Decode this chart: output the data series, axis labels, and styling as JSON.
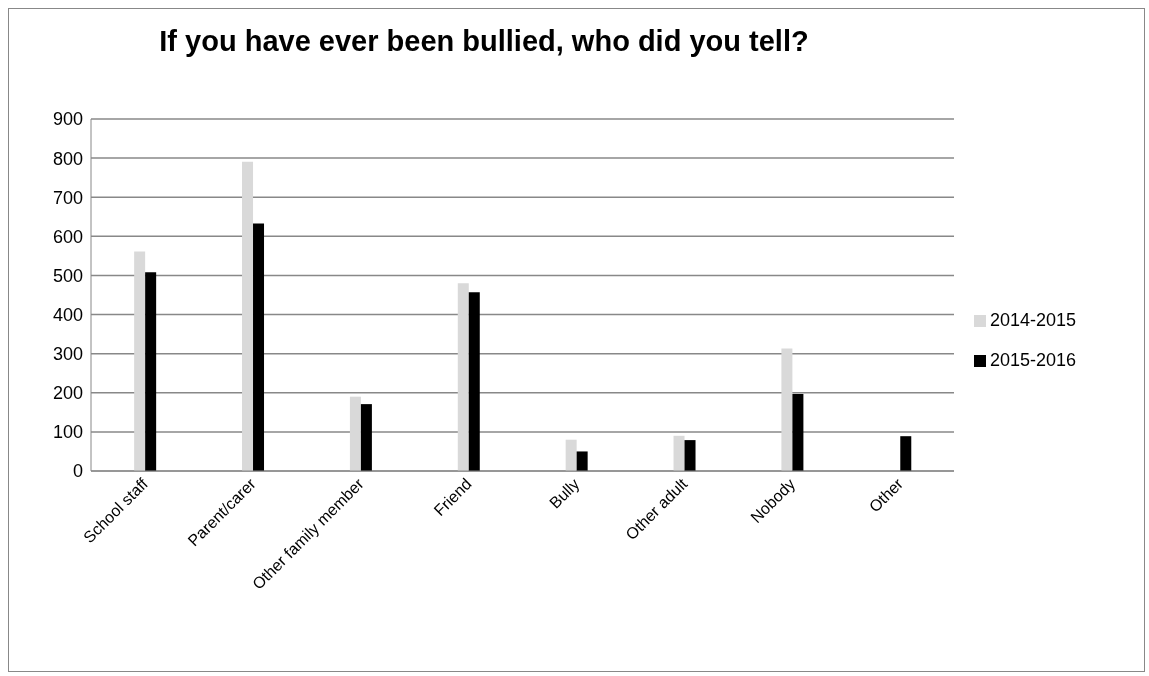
{
  "chart_data": {
    "type": "bar",
    "title": "If you have ever been bullied, who did you tell?",
    "categories": [
      "School staff",
      "Parent/carer",
      "Other family member",
      "Friend",
      "Bully",
      "Other adult",
      "Nobody",
      "Other"
    ],
    "series": [
      {
        "name": "2014-2015",
        "color": "#d9d9d9",
        "values": [
          561,
          791,
          190,
          480,
          80,
          90,
          313,
          0
        ]
      },
      {
        "name": "2015-2016",
        "color": "#000000",
        "values": [
          508,
          633,
          171,
          457,
          50,
          79,
          197,
          89
        ]
      }
    ],
    "ylim": [
      0,
      900
    ],
    "yticks": [
      0,
      100,
      200,
      300,
      400,
      500,
      600,
      700,
      800,
      900
    ],
    "grid": "y",
    "legend": "right"
  }
}
